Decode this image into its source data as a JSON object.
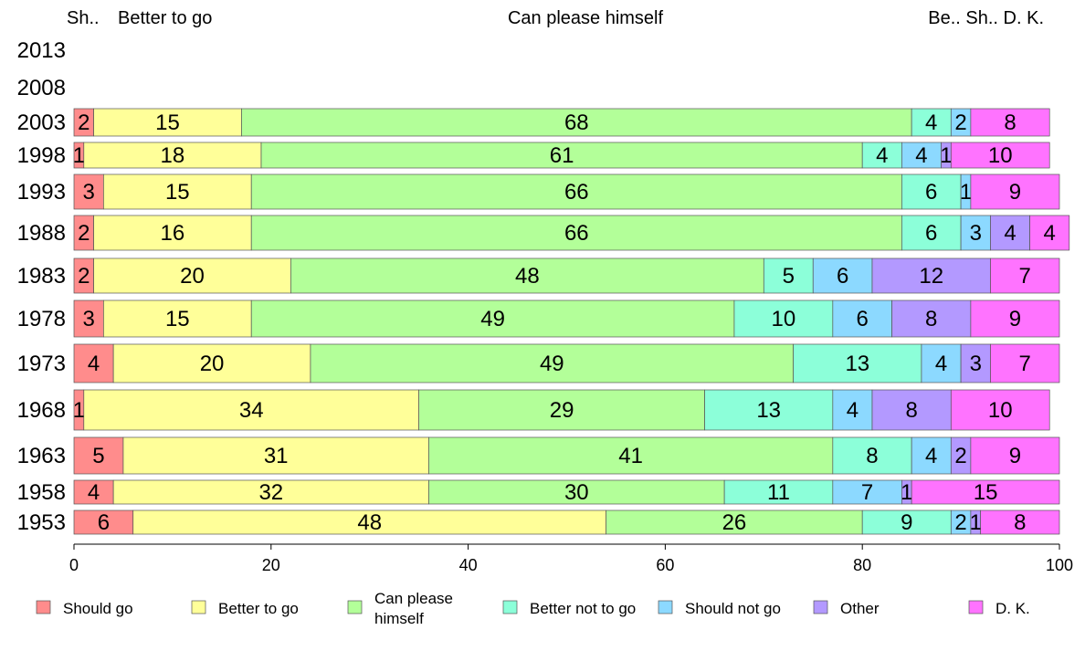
{
  "chart_data": {
    "type": "bar",
    "orientation": "horizontal",
    "stacked": true,
    "xlim": [
      0,
      100
    ],
    "x_ticks": [
      "0",
      "20",
      "40",
      "60",
      "80",
      "100"
    ],
    "top_labels": [
      "Sh..",
      "Better to go",
      "Can please himself",
      "Be.. Sh.. D. K."
    ],
    "categories": [
      "2013",
      "2008",
      "2003",
      "1998",
      "1993",
      "1988",
      "1983",
      "1978",
      "1973",
      "1968",
      "1963",
      "1958",
      "1953"
    ],
    "series": [
      {
        "name": "Should go",
        "color": "#ff8c8c",
        "values": [
          null,
          null,
          2,
          1,
          3,
          2,
          2,
          3,
          4,
          1,
          5,
          4,
          6
        ]
      },
      {
        "name": "Better to go",
        "color": "#ffff99",
        "values": [
          null,
          null,
          15,
          18,
          15,
          16,
          20,
          15,
          20,
          34,
          31,
          32,
          48
        ]
      },
      {
        "name": "Can please himself",
        "color": "#b3ff99",
        "values": [
          null,
          null,
          68,
          61,
          66,
          66,
          48,
          49,
          49,
          29,
          41,
          30,
          26
        ]
      },
      {
        "name": "Better not to go",
        "color": "#8cffd9",
        "values": [
          null,
          null,
          4,
          4,
          6,
          6,
          5,
          10,
          13,
          13,
          8,
          11,
          9
        ]
      },
      {
        "name": "Should not go",
        "color": "#8cd9ff",
        "values": [
          null,
          null,
          2,
          4,
          1,
          3,
          6,
          6,
          4,
          4,
          4,
          7,
          2
        ]
      },
      {
        "name": "Other",
        "color": "#b399ff",
        "values": [
          null,
          null,
          0,
          1,
          0,
          4,
          12,
          8,
          3,
          8,
          2,
          1,
          1
        ]
      },
      {
        "name": "D. K.",
        "color": "#ff73ff",
        "values": [
          null,
          null,
          8,
          10,
          9,
          4,
          7,
          9,
          7,
          10,
          9,
          15,
          8
        ]
      }
    ],
    "legend": {
      "position": "bottom",
      "items": [
        "Should go",
        "Better to go",
        "Can please himself",
        "Better not to go",
        "Should not go",
        "Other",
        "D. K."
      ]
    }
  }
}
